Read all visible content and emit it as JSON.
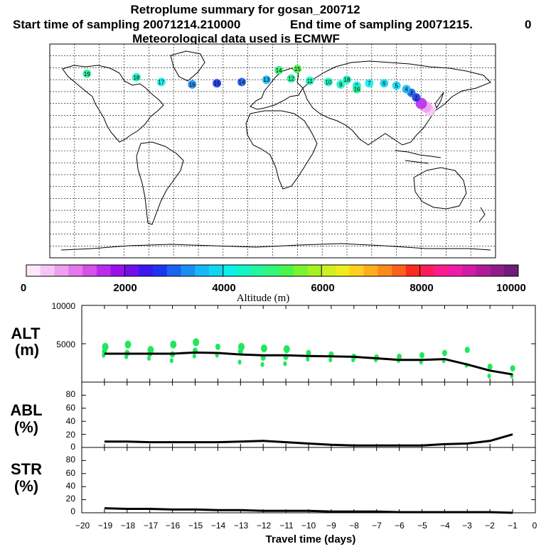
{
  "header": {
    "title": "Retroplume summary for gosan_200712",
    "start_label": "Start time of sampling 20071214.210000",
    "end_label": "End time of sampling 20071215.",
    "end_value": "0",
    "met_label": "Meteorological data used is ECMWF"
  },
  "map": {
    "plume_points": [
      {
        "lon": 127,
        "lat": 34,
        "alt": 300,
        "label": ""
      },
      {
        "lon": 124,
        "lat": 37,
        "alt": 800,
        "label": ""
      },
      {
        "lon": 120,
        "lat": 40,
        "alt": 1600,
        "label": ""
      },
      {
        "lon": 116,
        "lat": 45,
        "alt": 2600,
        "label": "2"
      },
      {
        "lon": 112,
        "lat": 49,
        "alt": 3000,
        "label": "3"
      },
      {
        "lon": 108,
        "lat": 52,
        "alt": 3600,
        "label": "4"
      },
      {
        "lon": 100,
        "lat": 55,
        "alt": 3900,
        "label": "5"
      },
      {
        "lon": 90,
        "lat": 57,
        "alt": 3800,
        "label": "6"
      },
      {
        "lon": 78,
        "lat": 57,
        "alt": 4000,
        "label": "7"
      },
      {
        "lon": 68,
        "lat": 55,
        "alt": 4100,
        "label": "8"
      },
      {
        "lon": 55,
        "lat": 56,
        "alt": 4300,
        "label": "9"
      },
      {
        "lon": 45,
        "lat": 58,
        "alt": 4400,
        "label": "10"
      },
      {
        "lon": 30,
        "lat": 59,
        "alt": 4500,
        "label": "11"
      },
      {
        "lon": 15,
        "lat": 61,
        "alt": 4700,
        "label": "12"
      },
      {
        "lon": -5,
        "lat": 60,
        "alt": 3700,
        "label": "13"
      },
      {
        "lon": -25,
        "lat": 58,
        "alt": 3000,
        "label": "14"
      },
      {
        "lon": -45,
        "lat": 57,
        "alt": 2600,
        "label": "15"
      },
      {
        "lon": -65,
        "lat": 56,
        "alt": 3300,
        "label": "16"
      },
      {
        "lon": -90,
        "lat": 58,
        "alt": 4100,
        "label": "17"
      },
      {
        "lon": -110,
        "lat": 62,
        "alt": 4400,
        "label": "18"
      },
      {
        "lon": -150,
        "lat": 65,
        "alt": 4800,
        "label": "19"
      },
      {
        "lon": 20,
        "lat": 69,
        "alt": 5200,
        "label": "15"
      },
      {
        "lon": 5,
        "lat": 68,
        "alt": 5000,
        "label": "14"
      },
      {
        "lon": 60,
        "lat": 60,
        "alt": 4300,
        "label": "18"
      },
      {
        "lon": 68,
        "lat": 52,
        "alt": 4600,
        "label": "16"
      }
    ]
  },
  "colorbar": {
    "min_label": "0",
    "labels": [
      "2000",
      "4000",
      "6000",
      "8000",
      "10000"
    ],
    "title": "Altitude (m)",
    "colors": [
      "#fde8fa",
      "#f5c6f3",
      "#eea0ee",
      "#e478ec",
      "#d650ea",
      "#bb2cea",
      "#9a10ec",
      "#7210ec",
      "#3a18ef",
      "#1c36f0",
      "#1a64f2",
      "#1b8ef4",
      "#16b8f6",
      "#10d6f2",
      "#0cf0ea",
      "#13f6c2",
      "#22f69e",
      "#32f678",
      "#4af64c",
      "#78f430",
      "#a4f224",
      "#cef020",
      "#eeec1c",
      "#fcd01c",
      "#fcae1c",
      "#fc8a1c",
      "#fc621c",
      "#fc2c1c",
      "#fc1c5a",
      "#fc1c90",
      "#f01ca6",
      "#d01ca6",
      "#b01c98",
      "#901c88",
      "#701c78"
    ]
  },
  "panels": {
    "alt": {
      "label_top": "ALT",
      "label_bottom": "(m)",
      "ticks": [
        "10000",
        "5000"
      ]
    },
    "abl": {
      "label_top": "ABL",
      "label_bottom": "(%)",
      "ticks": [
        "80",
        "60",
        "40",
        "20",
        "0"
      ]
    },
    "str": {
      "label_top": "STR",
      "label_bottom": "(%)",
      "ticks": [
        "80",
        "60",
        "40",
        "20",
        "0"
      ]
    }
  },
  "xaxis": {
    "tick_labels": [
      "−20",
      "−19",
      "−18",
      "−17",
      "−16",
      "−15",
      "−14",
      "−13",
      "−12",
      "−11",
      "−10",
      "−9",
      "−8",
      "−7",
      "−6",
      "−5",
      "−4",
      "−3",
      "−2",
      "−1",
      "0"
    ],
    "title": "Travel time (days)"
  },
  "chart_data": {
    "type": "line",
    "title": "Retroplume summary for gosan_200712",
    "xlabel": "Travel time (days)",
    "x": [
      -19,
      -18,
      -17,
      -16,
      -15,
      -14,
      -13,
      -12,
      -11,
      -10,
      -9,
      -8,
      -7,
      -6,
      -5,
      -4,
      -3,
      -2,
      -1
    ],
    "xlim": [
      -20,
      0
    ],
    "series": [
      {
        "name": "ALT (m)",
        "ylim": [
          0,
          10000
        ],
        "values": [
          3700,
          3700,
          3700,
          3700,
          3850,
          3800,
          3600,
          3500,
          3500,
          3400,
          3350,
          3300,
          3100,
          2900,
          2900,
          3000,
          2300,
          1500,
          1000
        ]
      },
      {
        "name": "ABL (%)",
        "ylim": [
          0,
          100
        ],
        "values": [
          9,
          9,
          8,
          8,
          8,
          8,
          9,
          10,
          8,
          6,
          4,
          3,
          3,
          3,
          3,
          5,
          6,
          10,
          20
        ]
      },
      {
        "name": "STR (%)",
        "ylim": [
          0,
          100
        ],
        "values": [
          7,
          6,
          6,
          5,
          5,
          4,
          4,
          3,
          3,
          3,
          2,
          2,
          2,
          1,
          1,
          1,
          1,
          1,
          0
        ]
      }
    ],
    "alt_scatter": [
      {
        "day": -19,
        "alts": [
          3500,
          4000,
          4600
        ]
      },
      {
        "day": -18,
        "alts": [
          3300,
          3800,
          4900
        ]
      },
      {
        "day": -17,
        "alts": [
          3100,
          3700,
          4200
        ]
      },
      {
        "day": -16,
        "alts": [
          2800,
          3600,
          4900
        ]
      },
      {
        "day": -15,
        "alts": [
          3400,
          4100,
          5200
        ]
      },
      {
        "day": -14,
        "alts": [
          3500,
          4600
        ]
      },
      {
        "day": -13,
        "alts": [
          2600,
          4000,
          4600
        ]
      },
      {
        "day": -12,
        "alts": [
          2300,
          3200,
          4400
        ]
      },
      {
        "day": -11,
        "alts": [
          2400,
          3300,
          4300
        ]
      },
      {
        "day": -10,
        "alts": [
          3000,
          3800
        ]
      },
      {
        "day": -9,
        "alts": [
          2900,
          3600
        ]
      },
      {
        "day": -8,
        "alts": [
          2900,
          3300
        ]
      },
      {
        "day": -7,
        "alts": [
          2900,
          3200
        ]
      },
      {
        "day": -6,
        "alts": [
          2800,
          3300
        ]
      },
      {
        "day": -5,
        "alts": [
          2600,
          3500
        ]
      },
      {
        "day": -4,
        "alts": [
          2800,
          3800
        ]
      },
      {
        "day": -3,
        "alts": [
          2200,
          4200
        ]
      },
      {
        "day": -2,
        "alts": [
          800,
          2000
        ]
      },
      {
        "day": -1,
        "alts": [
          800,
          1800
        ]
      }
    ]
  }
}
